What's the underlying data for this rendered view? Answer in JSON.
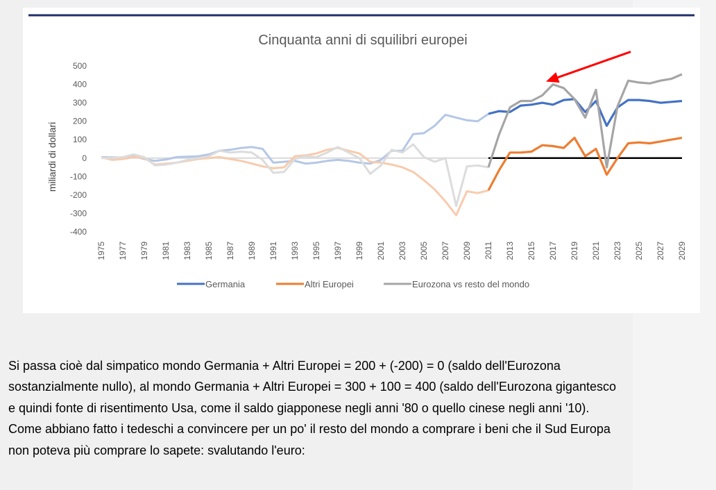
{
  "chart_data": {
    "type": "line",
    "title": "Cinquanta anni di squilibri europei",
    "ylabel": "miliardi di dollari",
    "xlabel": "",
    "ylim": [
      -400,
      500
    ],
    "yticks": [
      500,
      400,
      300,
      200,
      100,
      0,
      -100,
      -200,
      -300,
      -400
    ],
    "ytick_labels": [
      "500",
      "400",
      "300",
      "200",
      "100",
      "0",
      "-100",
      "-200",
      "-300",
      "-400"
    ],
    "x": [
      1975,
      1976,
      1977,
      1978,
      1979,
      1980,
      1981,
      1982,
      1983,
      1984,
      1985,
      1986,
      1987,
      1988,
      1989,
      1990,
      1991,
      1992,
      1993,
      1994,
      1995,
      1996,
      1997,
      1998,
      1999,
      2000,
      2001,
      2002,
      2003,
      2004,
      2005,
      2006,
      2007,
      2008,
      2009,
      2010,
      2011,
      2012,
      2013,
      2014,
      2015,
      2016,
      2017,
      2018,
      2019,
      2020,
      2021,
      2022,
      2023,
      2024,
      2025,
      2026,
      2027,
      2028,
      2029
    ],
    "xtick_labels": [
      "1975",
      "1977",
      "1979",
      "1981",
      "1983",
      "1985",
      "1987",
      "1989",
      "1991",
      "1993",
      "1995",
      "1997",
      "1999",
      "2001",
      "2003",
      "2005",
      "2007",
      "2009",
      "2011",
      "2013",
      "2015",
      "2017",
      "2019",
      "2021",
      "2023",
      "2025",
      "2027",
      "2029"
    ],
    "highlight_from": 2011,
    "grid": false,
    "legend_position": "bottom",
    "series": [
      {
        "name": "Germania",
        "color": "#4472c4",
        "faded_color": "#b4c7e7",
        "values": [
          5,
          4,
          3,
          10,
          -5,
          -15,
          -8,
          5,
          8,
          10,
          20,
          40,
          45,
          55,
          60,
          50,
          -25,
          -20,
          -15,
          -30,
          -25,
          -15,
          -10,
          -15,
          -25,
          -30,
          -10,
          40,
          40,
          130,
          135,
          175,
          235,
          220,
          205,
          200,
          240,
          255,
          250,
          285,
          290,
          300,
          290,
          315,
          320,
          250,
          310,
          175,
          275,
          315,
          315,
          310,
          300,
          305,
          310
        ]
      },
      {
        "name": "Altri Europei",
        "color": "#ed7d31",
        "faded_color": "#f8cbad",
        "values": [
          5,
          -10,
          -5,
          5,
          0,
          -35,
          -30,
          -25,
          -15,
          -5,
          0,
          5,
          -5,
          -15,
          -30,
          -45,
          -55,
          -50,
          10,
          15,
          25,
          45,
          55,
          40,
          25,
          -20,
          -25,
          -35,
          -50,
          -75,
          -120,
          -170,
          -235,
          -310,
          -180,
          -190,
          -175,
          -65,
          30,
          30,
          35,
          70,
          65,
          55,
          110,
          10,
          50,
          -90,
          0,
          80,
          85,
          80,
          90,
          100,
          110
        ]
      },
      {
        "name": "Eurozona vs resto del mondo",
        "color": "#a5a5a5",
        "faded_color": "#dcdcdc",
        "values": [
          0,
          0,
          5,
          20,
          5,
          -40,
          -35,
          -25,
          -10,
          0,
          10,
          40,
          30,
          35,
          30,
          -10,
          -80,
          -75,
          -5,
          10,
          5,
          30,
          60,
          30,
          0,
          -85,
          -40,
          45,
          30,
          75,
          5,
          -20,
          0,
          -260,
          -45,
          -40,
          -50,
          130,
          275,
          310,
          310,
          340,
          400,
          380,
          320,
          220,
          370,
          -50,
          280,
          420,
          410,
          405,
          420,
          430,
          455
        ]
      }
    ],
    "baseline_color": "#000000",
    "top_rule_color": "#1f2e6b",
    "annotation": {
      "type": "arrow",
      "color": "#ff0000",
      "points_to_year": 2017
    }
  },
  "article": {
    "text": "Si passa cioè dal simpatico mondo Germania + Altri Europei = 200 + (-200) = 0 (saldo dell'Eurozona sostanzialmente nullo), al mondo Germania + Altri Europei = 300 + 100 = 400 (saldo dell'Eurozona gigantesco e quindi fonte di risentimento Usa, come il saldo giapponese negli anni '80 o quello cinese negli anni '10). Come abbiano fatto i tedeschi a convincere per un po' il resto del mondo a comprare i beni che il Sud Europa non poteva più comprare lo sapete: svalutando l'euro:"
  }
}
